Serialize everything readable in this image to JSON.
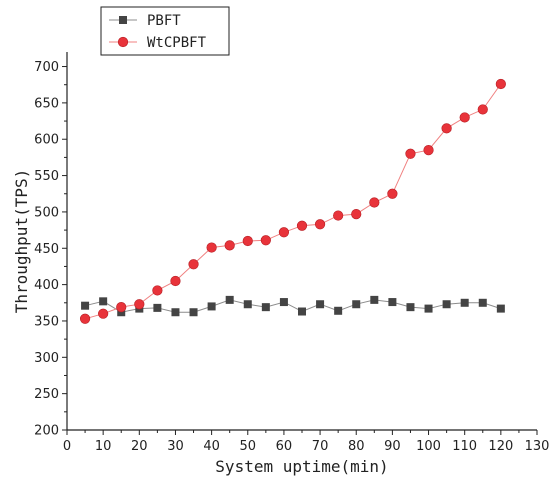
{
  "chart_data": {
    "type": "line",
    "xlabel": "System uptime(min)",
    "ylabel": "Throughput(TPS)",
    "xlim": [
      0,
      130
    ],
    "ylim": [
      200,
      720
    ],
    "x_ticks": [
      0,
      10,
      20,
      30,
      40,
      50,
      60,
      70,
      80,
      90,
      100,
      110,
      120,
      130
    ],
    "y_ticks": [
      200,
      250,
      300,
      350,
      400,
      450,
      500,
      550,
      600,
      650,
      700
    ],
    "grid": false,
    "legend_position": "top-left",
    "x": [
      5,
      10,
      15,
      20,
      25,
      30,
      35,
      40,
      45,
      50,
      55,
      60,
      65,
      70,
      75,
      80,
      85,
      90,
      95,
      100,
      105,
      110,
      115,
      120
    ],
    "series": [
      {
        "name": "PBFT",
        "marker": "square",
        "color": "#444444",
        "line_color": "#8c8c8c",
        "values": [
          371,
          377,
          362,
          367,
          368,
          362,
          362,
          370,
          379,
          373,
          369,
          376,
          363,
          373,
          364,
          373,
          379,
          376,
          369,
          367,
          373,
          375,
          375,
          367
        ]
      },
      {
        "name": "WtCPBFT",
        "marker": "circle",
        "color": "#e8333a",
        "line_color": "#f08080",
        "values": [
          353,
          360,
          369,
          373,
          392,
          405,
          428,
          451,
          454,
          460,
          461,
          472,
          481,
          483,
          495,
          497,
          513,
          525,
          580,
          585,
          615,
          630,
          641,
          676
        ]
      }
    ]
  }
}
